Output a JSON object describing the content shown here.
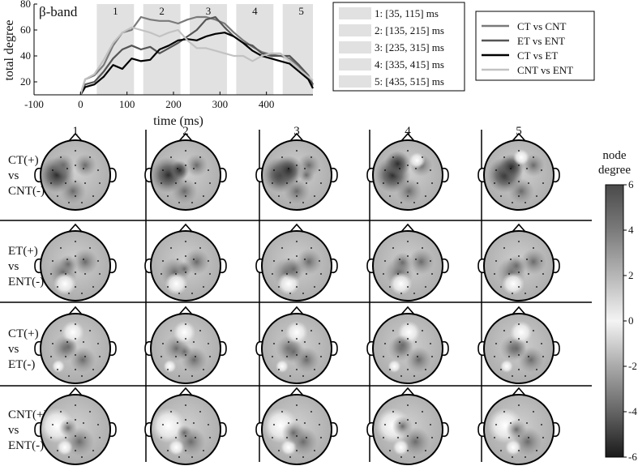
{
  "chart_data": {
    "type": "line",
    "title": "β-band",
    "xlabel": "time (ms)",
    "ylabel": "total degree",
    "xlim": [
      -100,
      500
    ],
    "ylim": [
      10,
      80
    ],
    "x_ticks": [
      -100,
      0,
      100,
      200,
      300,
      400
    ],
    "y_ticks": [
      20,
      40,
      60,
      80
    ],
    "windows": [
      {
        "label": "1",
        "legend": "1: [35, 115] ms",
        "start": 35,
        "end": 115
      },
      {
        "label": "2",
        "legend": "2: [135, 215] ms",
        "start": 135,
        "end": 215
      },
      {
        "label": "3",
        "legend": "3: [235, 315] ms",
        "start": 235,
        "end": 315
      },
      {
        "label": "4",
        "legend": "4: [335, 415] ms",
        "start": 335,
        "end": 415
      },
      {
        "label": "5",
        "legend": "5: [435, 515] ms",
        "start": 435,
        "end": 515
      }
    ],
    "x": [
      0,
      10,
      30,
      50,
      70,
      90,
      110,
      130,
      150,
      170,
      190,
      210,
      230,
      250,
      270,
      290,
      310,
      330,
      350,
      370,
      390,
      410,
      430,
      450,
      470,
      490,
      500
    ],
    "series": [
      {
        "name": "CT vs CNT",
        "color": "#7a7a7a",
        "width": 2.2,
        "values": [
          10,
          22,
          25,
          33,
          48,
          58,
          60,
          70,
          68,
          67,
          67,
          65,
          68,
          70,
          70,
          68,
          65,
          58,
          52,
          47,
          43,
          41,
          40,
          38,
          32,
          22,
          17
        ]
      },
      {
        "name": "ET vs ENT",
        "color": "#555555",
        "width": 2.2,
        "values": [
          10,
          18,
          20,
          28,
          38,
          45,
          48,
          45,
          47,
          42,
          46,
          50,
          55,
          60,
          68,
          70,
          62,
          55,
          50,
          48,
          42,
          40,
          40,
          40,
          33,
          25,
          18
        ]
      },
      {
        "name": "CT vs ET",
        "color": "#000000",
        "width": 2.2,
        "values": [
          10,
          16,
          18,
          24,
          33,
          30,
          38,
          36,
          37,
          45,
          48,
          52,
          53,
          52,
          55,
          57,
          58,
          55,
          50,
          44,
          40,
          38,
          36,
          34,
          28,
          22,
          15
        ]
      },
      {
        "name": "CNT vs ENT",
        "color": "#c2c2c2",
        "width": 2.2,
        "values": [
          10,
          22,
          26,
          37,
          50,
          58,
          62,
          60,
          58,
          55,
          58,
          60,
          52,
          46,
          46,
          44,
          42,
          40,
          40,
          36,
          40,
          42,
          42,
          36,
          30,
          24,
          21
        ]
      }
    ]
  },
  "topomap": {
    "columns": [
      "1",
      "2",
      "3",
      "4",
      "5"
    ],
    "rows": [
      {
        "line1": "CT(+)",
        "line2": "vs",
        "line3": "CNT(-)"
      },
      {
        "line1": "ET(+)",
        "line2": "vs",
        "line3": "ENT(-)"
      },
      {
        "line1": "CT(+)",
        "line2": "vs",
        "line3": "ET(-)"
      },
      {
        "line1": "CNT(+)",
        "line2": "vs",
        "line3": "ENT(-)"
      }
    ],
    "colorbar": {
      "title_line1": "node",
      "title_line2": "degree",
      "min": -6,
      "max": 6,
      "ticks": [
        "6",
        "4",
        "2",
        "0",
        "-2",
        "-4",
        "-6"
      ]
    }
  }
}
